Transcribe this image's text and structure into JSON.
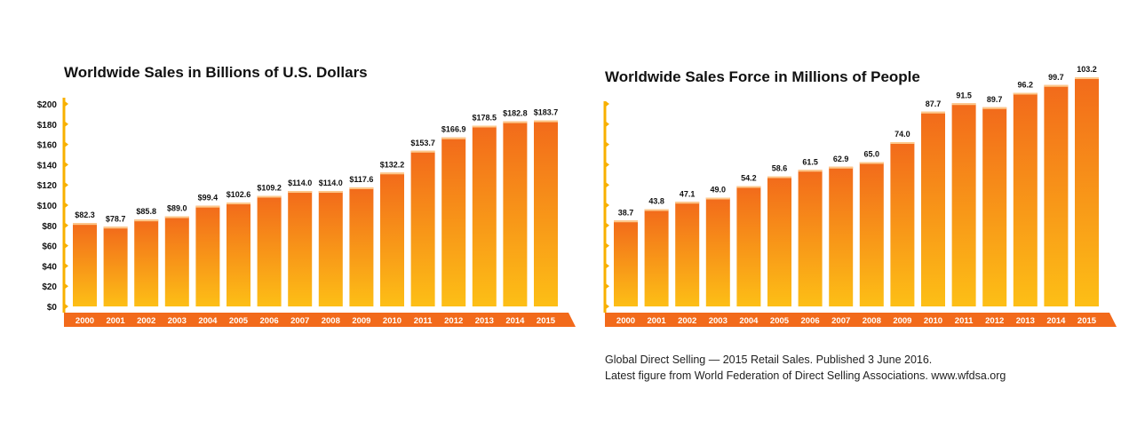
{
  "chart_data": [
    {
      "type": "bar",
      "title": "Worldwide Sales in Billions of U.S. Dollars",
      "categories": [
        "2000",
        "2001",
        "2002",
        "2003",
        "2004",
        "2005",
        "2006",
        "2007",
        "2008",
        "2009",
        "2010",
        "2011",
        "2012",
        "2013",
        "2014",
        "2015"
      ],
      "values": [
        82.3,
        78.7,
        85.8,
        89.0,
        99.4,
        102.6,
        109.2,
        114.0,
        114.0,
        117.6,
        132.2,
        153.7,
        166.9,
        178.5,
        182.8,
        183.7
      ],
      "value_labels": [
        "$82.3",
        "$78.7",
        "$85.8",
        "$89.0",
        "$99.4",
        "$102.6",
        "$109.2",
        "$114.0",
        "$114.0",
        "$117.6",
        "$132.2",
        "$153.7",
        "$166.9",
        "$178.5",
        "$182.8",
        "$183.7"
      ],
      "yticks": [
        "$200",
        "$180",
        "$160",
        "$140",
        "$120",
        "$100",
        "$80",
        "$60",
        "$40",
        "$20",
        "$0"
      ],
      "ylim": [
        0,
        200
      ],
      "xlabel": "",
      "ylabel": "",
      "grid": false
    },
    {
      "type": "bar",
      "title": "Worldwide Sales Force in Millions of People",
      "categories": [
        "2000",
        "2001",
        "2002",
        "2003",
        "2004",
        "2005",
        "2006",
        "2007",
        "2008",
        "2009",
        "2010",
        "2011",
        "2012",
        "2013",
        "2014",
        "2015"
      ],
      "values": [
        38.7,
        43.8,
        47.1,
        49.0,
        54.2,
        58.6,
        61.5,
        62.9,
        65.0,
        74.0,
        87.7,
        91.5,
        89.7,
        96.2,
        99.7,
        103.2
      ],
      "value_labels": [
        "38.7",
        "43.8",
        "47.1",
        "49.0",
        "54.2",
        "58.6",
        "61.5",
        "62.9",
        "65.0",
        "74.0",
        "87.7",
        "91.5",
        "89.7",
        "96.2",
        "99.7",
        "103.2"
      ],
      "yticks": [],
      "xlabel": "",
      "ylabel": "",
      "grid": false
    }
  ],
  "footnote": {
    "line1": "Global Direct Selling — 2015 Retail Sales. Published 3 June 2016.",
    "line2": "Latest figure from World Federation of Direct Selling Associations. www.wfdsa.org"
  },
  "colors": {
    "bar_top": "#f26a1b",
    "bar_bottom": "#fdbf16",
    "axis_band": "#f26a1b",
    "axis_spine": "#f8b000"
  }
}
